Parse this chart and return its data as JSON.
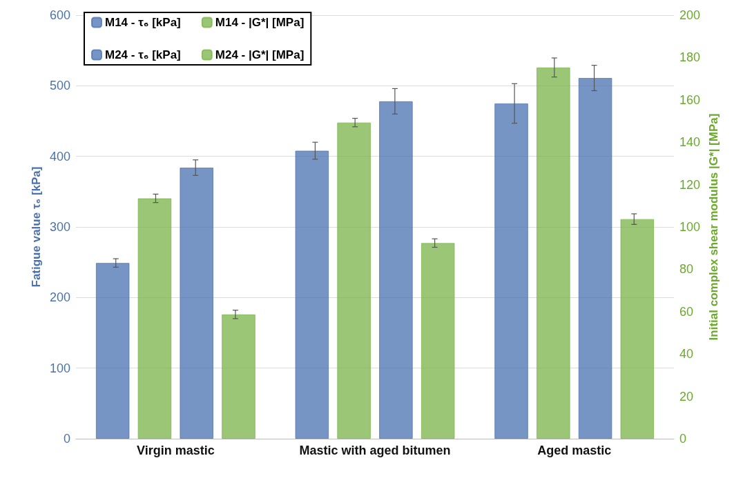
{
  "chart_data": {
    "type": "bar",
    "ylabel": "Fatigue value τ₆ [kPa]",
    "y2label": "Initial complex shear modulus |G*| [MPa]",
    "categories": [
      "Virgin mastic",
      "Mastic with aged bitumen",
      "Aged mastic"
    ],
    "series": [
      {
        "name": "M14 - τ₆ [kPa]",
        "color": "#4a72b0",
        "values": [
          249,
          408,
          475
        ],
        "errors": [
          6,
          12,
          28
        ]
      },
      {
        "name": "M14 - |G*| [MPa]",
        "color": "#78b347",
        "values": [
          113.5,
          149.3,
          175.3
        ],
        "errors": [
          2,
          2,
          4.5
        ],
        "axis": "y2"
      },
      {
        "name": "M24 - τ₆ [kPa]",
        "color": "#4a72b0",
        "values": [
          384,
          478,
          511
        ],
        "errors": [
          11,
          18,
          18
        ]
      },
      {
        "name": "M24 - |G*| [MPa]",
        "color": "#78b347",
        "values": [
          58.7,
          92.4,
          103.7
        ],
        "errors": [
          2,
          2,
          2.5
        ],
        "axis": "y2"
      }
    ],
    "ylim": [
      0,
      600
    ],
    "yticks": [
      0,
      100,
      200,
      300,
      400,
      500,
      600
    ],
    "y2lim": [
      0,
      200
    ],
    "y2ticks": [
      0,
      20,
      40,
      60,
      80,
      100,
      120,
      140,
      160,
      180,
      200
    ],
    "grid": "y",
    "legend": "top left"
  }
}
